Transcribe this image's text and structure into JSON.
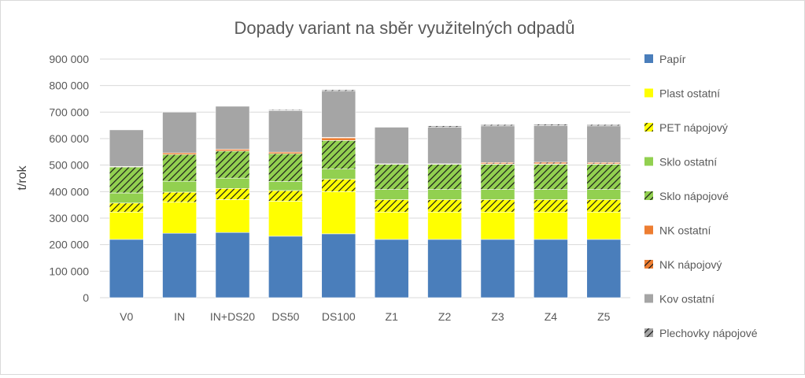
{
  "chart_data": {
    "type": "stacked-bar",
    "title": "Dopady variant na sběr využitelných odpadů",
    "xlabel": "",
    "ylabel": "t/rok",
    "ylim": [
      0,
      900000
    ],
    "yticks": [
      0,
      100000,
      200000,
      300000,
      400000,
      500000,
      600000,
      700000,
      800000,
      900000
    ],
    "ytick_labels": [
      "0",
      "100 000",
      "200 000",
      "300 000",
      "400 000",
      "500 000",
      "600 000",
      "700 000",
      "800 000",
      "900 000"
    ],
    "grid": true,
    "legend_position": "right",
    "categories": [
      "V0",
      "IN",
      "IN+DS20",
      "DS50",
      "DS100",
      "Z1",
      "Z2",
      "Z3",
      "Z4",
      "Z5"
    ],
    "series": [
      {
        "name": "Papír",
        "color": "#4a7ebb",
        "pattern": "solid",
        "values": [
          220000,
          243000,
          246000,
          232000,
          241000,
          220000,
          220000,
          220000,
          220000,
          220000
        ]
      },
      {
        "name": "Plast ostatní",
        "color": "#ffff00",
        "pattern": "solid",
        "values": [
          103000,
          117000,
          124000,
          132000,
          159000,
          103000,
          103000,
          103000,
          103000,
          103000
        ]
      },
      {
        "name": "PET nápojový",
        "color": "#ffff00",
        "pattern": "hatch",
        "values": [
          34000,
          38000,
          42000,
          40000,
          47000,
          47000,
          47000,
          47000,
          47000,
          47000
        ]
      },
      {
        "name": "Sklo ostatní",
        "color": "#92d050",
        "pattern": "solid",
        "values": [
          38000,
          41000,
          39000,
          34000,
          38000,
          38000,
          38000,
          38000,
          38000,
          38000
        ]
      },
      {
        "name": "Sklo nápojové",
        "color": "#92d050",
        "pattern": "hatch",
        "values": [
          98000,
          101000,
          102000,
          105000,
          108000,
          95000,
          95000,
          95000,
          95000,
          95000
        ]
      },
      {
        "name": "NK ostatní",
        "color": "#ed7d31",
        "pattern": "solid",
        "values": [
          2000,
          6000,
          7000,
          6000,
          10000,
          2000,
          2000,
          2000,
          2000,
          2000
        ]
      },
      {
        "name": "NK nápojový",
        "color": "#ed7d31",
        "pattern": "hatch",
        "values": [
          0,
          0,
          0,
          0,
          2000,
          0,
          0,
          5000,
          6000,
          5000
        ]
      },
      {
        "name": "Kov ostatní",
        "color": "#a5a5a5",
        "pattern": "solid",
        "values": [
          138000,
          154000,
          162000,
          157000,
          174000,
          138000,
          138000,
          138000,
          138000,
          138000
        ]
      },
      {
        "name": "Plechovky nápojové",
        "color": "#a5a5a5",
        "pattern": "hatch",
        "values": [
          0,
          0,
          0,
          3000,
          5000,
          0,
          5000,
          5000,
          5000,
          5000
        ]
      }
    ]
  }
}
